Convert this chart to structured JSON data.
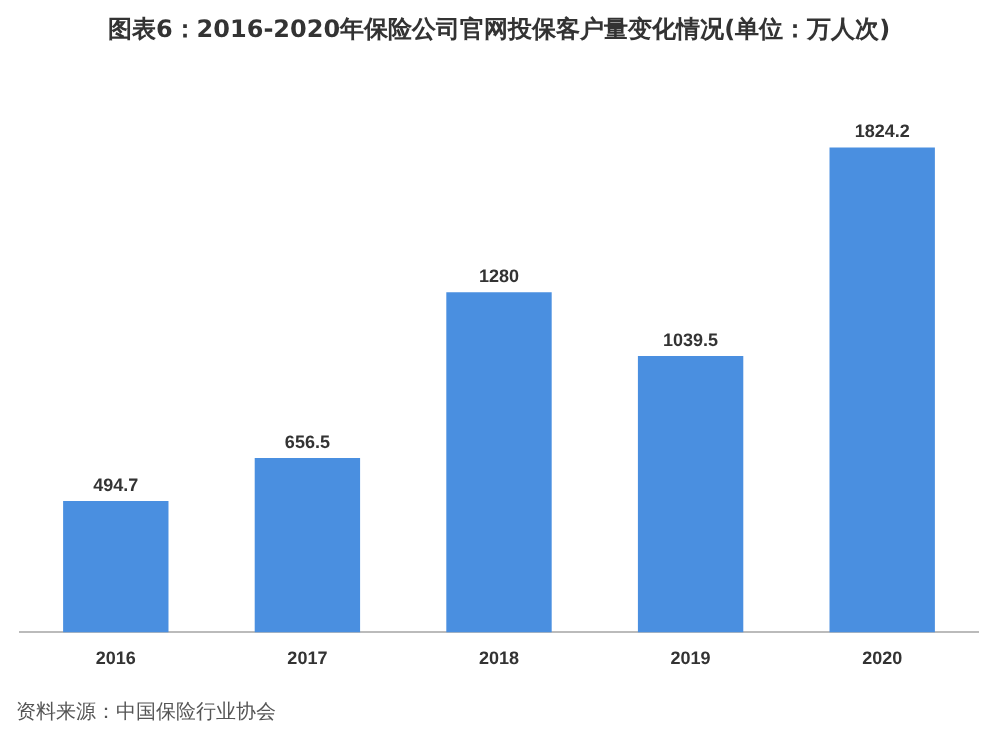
{
  "chart_data": {
    "type": "bar",
    "title": "图表6：2016-2020年保险公司官网投保客户量变化情况(单位：万人次)",
    "categories": [
      "2016",
      "2017",
      "2018",
      "2019",
      "2020"
    ],
    "values": [
      494.7,
      656.5,
      1280,
      1039.5,
      1824.2
    ],
    "color": "#4a8fe0",
    "data_labels": true,
    "tick_labels": "x",
    "grid": false,
    "legend": false,
    "annotations": [
      "资料来源：中国保险行业协会"
    ]
  }
}
